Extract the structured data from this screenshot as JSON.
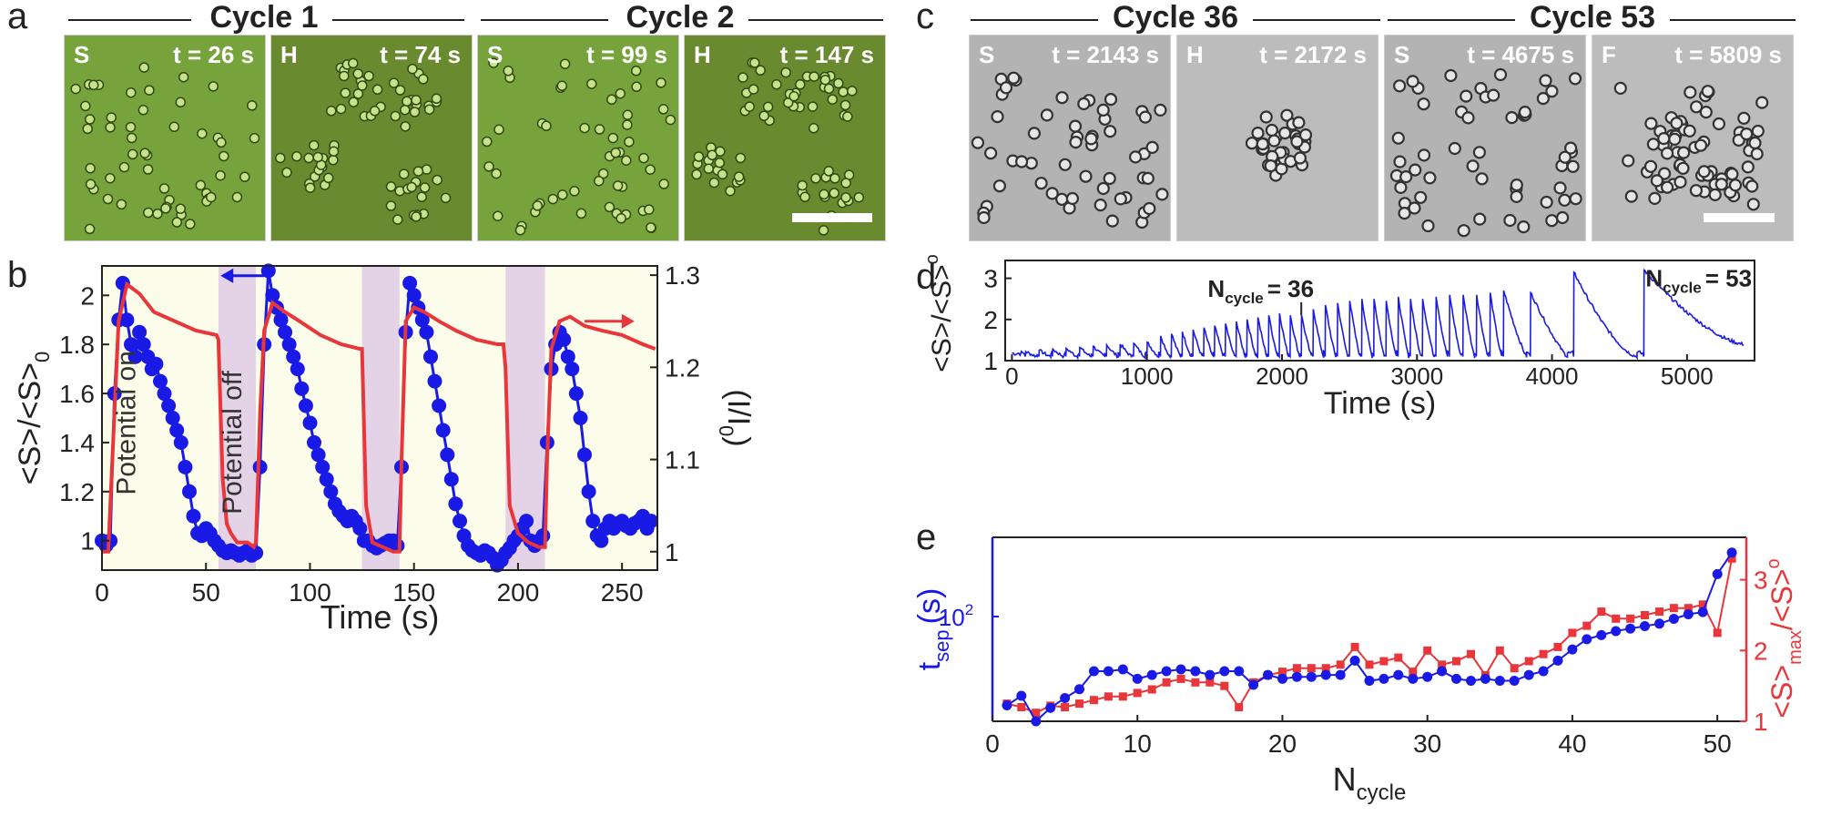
{
  "panel_letters": {
    "a": "a",
    "b": "b",
    "c": "c",
    "d": "d",
    "e": "e"
  },
  "cycle_headers": {
    "c1": "Cycle 1",
    "c2": "Cycle 2",
    "c36": "Cycle 36",
    "c53": "Cycle 53"
  },
  "micrographs": [
    {
      "state": "S",
      "time": "t = 26 s"
    },
    {
      "state": "H",
      "time": "t = 74 s"
    },
    {
      "state": "S",
      "time": "t = 99 s"
    },
    {
      "state": "H",
      "time": "t = 147 s"
    },
    {
      "state": "S",
      "time": "t = 2143 s"
    },
    {
      "state": "H",
      "time": "t = 2172 s"
    },
    {
      "state": "S",
      "time": "t = 4675 s"
    },
    {
      "state": "F",
      "time": "t = 5809 s"
    }
  ],
  "colors": {
    "blue": "#1a1ae6",
    "red": "#e8363a",
    "shade": "#e4d2e6",
    "bg": "#fbfcea",
    "green_img": "#6f9a37",
    "gray_img": "#b5b5b5"
  },
  "chart_data": [
    {
      "id": "b",
      "type": "line",
      "xlabel": "Time (s)",
      "ylabel_left": "<S>/<S>",
      "ylabel_left_sub": "0",
      "ylabel_right": "(I/I",
      "ylabel_right_sub": "0",
      "ylabel_right_end": ")",
      "xlim": [
        0,
        267
      ],
      "ylim_left": [
        0.88,
        2.12
      ],
      "ylim_right": [
        0.98,
        1.31
      ],
      "xticks": [
        0,
        50,
        100,
        150,
        200,
        250
      ],
      "yticks_left": [
        1,
        1.2,
        1.4,
        1.6,
        1.8,
        2
      ],
      "yticks_right": [
        1,
        1.1,
        1.2,
        1.3
      ],
      "annotations": [
        "Potential on",
        "Potential off"
      ],
      "shaded_intervals": [
        [
          56,
          74
        ],
        [
          125,
          143
        ],
        [
          194,
          213
        ]
      ],
      "series": [
        {
          "name": "<S>/<S>0",
          "axis": "left",
          "color": "#1a1ae6",
          "marker": "circle",
          "x": [
            0,
            2,
            4,
            6,
            8,
            10,
            12,
            14,
            16,
            18,
            20,
            22,
            24,
            26,
            28,
            30,
            32,
            34,
            36,
            38,
            40,
            42,
            44,
            46,
            48,
            50,
            52,
            54,
            56,
            58,
            60,
            62,
            64,
            66,
            68,
            70,
            72,
            74,
            76,
            78,
            80,
            82,
            84,
            86,
            88,
            90,
            92,
            94,
            96,
            98,
            100,
            102,
            104,
            106,
            108,
            110,
            112,
            114,
            116,
            118,
            120,
            122,
            124,
            126,
            128,
            130,
            132,
            134,
            136,
            138,
            140,
            142,
            144,
            146,
            148,
            150,
            152,
            154,
            156,
            158,
            160,
            162,
            164,
            166,
            168,
            170,
            172,
            174,
            176,
            178,
            180,
            182,
            184,
            186,
            188,
            190,
            192,
            194,
            196,
            198,
            200,
            202,
            204,
            206,
            208,
            210,
            212,
            214,
            216,
            218,
            220,
            222,
            224,
            226,
            228,
            230,
            232,
            234,
            236,
            238,
            240,
            242,
            244,
            246,
            248,
            250,
            252,
            254,
            256,
            258,
            260,
            262,
            264
          ],
          "y": [
            1.0,
            0.98,
            1.0,
            1.6,
            1.9,
            2.05,
            1.9,
            1.8,
            1.75,
            1.85,
            1.8,
            1.75,
            1.7,
            1.72,
            1.65,
            1.6,
            1.55,
            1.5,
            1.45,
            1.4,
            1.3,
            1.2,
            1.1,
            1.03,
            1.02,
            1.05,
            1.03,
            1.0,
            0.98,
            0.96,
            0.95,
            0.96,
            0.95,
            0.94,
            0.95,
            0.96,
            0.94,
            0.95,
            1.3,
            1.8,
            2.1,
            2.0,
            1.95,
            1.9,
            1.85,
            1.8,
            1.75,
            1.7,
            1.62,
            1.55,
            1.48,
            1.4,
            1.35,
            1.3,
            1.25,
            1.2,
            1.15,
            1.12,
            1.1,
            1.08,
            1.1,
            1.08,
            1.05,
            1.0,
            1.0,
            0.98,
            0.97,
            0.98,
            0.99,
            1.0,
            1.0,
            0.98,
            1.3,
            1.85,
            2.05,
            2.0,
            1.95,
            1.9,
            1.85,
            1.75,
            1.65,
            1.55,
            1.45,
            1.35,
            1.25,
            1.15,
            1.08,
            1.02,
            0.98,
            0.96,
            0.95,
            0.94,
            0.96,
            0.95,
            0.93,
            0.9,
            0.92,
            0.95,
            0.97,
            1.0,
            1.02,
            1.05,
            1.08,
            1.0,
            0.98,
            1.0,
            1.02,
            1.4,
            1.7,
            1.8,
            1.85,
            1.82,
            1.75,
            1.7,
            1.6,
            1.5,
            1.35,
            1.2,
            1.08,
            1.02,
            1.0,
            1.05,
            1.08,
            1.05,
            1.07,
            1.08,
            1.06,
            1.05,
            1.07,
            1.08,
            1.1,
            1.05,
            1.08
          ]
        },
        {
          "name": "I/I0",
          "axis": "right",
          "color": "#e8363a",
          "marker": "none",
          "x": [
            0,
            3,
            5,
            8,
            12,
            18,
            25,
            35,
            45,
            55,
            56,
            58,
            60,
            62,
            65,
            70,
            73,
            74,
            76,
            78,
            82,
            88,
            95,
            105,
            115,
            124,
            125,
            127,
            130,
            135,
            140,
            143,
            144,
            146,
            150,
            155,
            162,
            170,
            180,
            190,
            193,
            194,
            196,
            200,
            205,
            210,
            213,
            214,
            216,
            220,
            225,
            232,
            240,
            250,
            260,
            266
          ],
          "y": [
            1.0,
            1.0,
            1.1,
            1.25,
            1.29,
            1.28,
            1.26,
            1.25,
            1.24,
            1.235,
            1.23,
            1.08,
            1.03,
            1.02,
            1.01,
            1.01,
            1.005,
            1.01,
            1.15,
            1.24,
            1.27,
            1.26,
            1.25,
            1.235,
            1.225,
            1.22,
            1.22,
            1.05,
            1.01,
            1.005,
            1.0,
            1.0,
            1.1,
            1.25,
            1.265,
            1.26,
            1.25,
            1.24,
            1.23,
            1.225,
            1.225,
            1.2,
            1.05,
            1.02,
            1.01,
            1.005,
            1.005,
            1.1,
            1.22,
            1.25,
            1.255,
            1.245,
            1.24,
            1.235,
            1.225,
            1.22
          ]
        }
      ]
    },
    {
      "id": "d",
      "type": "line",
      "xlabel": "Time (s)",
      "ylabel": "<S>/<S>",
      "ylabel_sub": "o",
      "xlim": [
        -50,
        5500
      ],
      "ylim": [
        1,
        3.3
      ],
      "xticks": [
        0,
        1000,
        2000,
        3000,
        4000,
        5000
      ],
      "yticks": [
        1,
        2,
        3
      ],
      "annotations": [
        {
          "text": "N",
          "sub": "cycle",
          "rest": "= 36"
        },
        {
          "text": "N",
          "sub": "cycle",
          "rest": "= 53"
        }
      ],
      "peaks": {
        "times": [
          100,
          200,
          300,
          400,
          500,
          600,
          700,
          800,
          900,
          1000,
          1100,
          1180,
          1260,
          1340,
          1420,
          1500,
          1580,
          1660,
          1740,
          1820,
          1900,
          1980,
          2060,
          2143,
          2230,
          2320,
          2410,
          2500,
          2590,
          2680,
          2770,
          2860,
          2950,
          3040,
          3140,
          3240,
          3340,
          3440,
          3540,
          3640,
          3840,
          4160,
          4680
        ],
        "heights": [
          1.22,
          1.25,
          1.28,
          1.3,
          1.32,
          1.35,
          1.38,
          1.4,
          1.42,
          1.45,
          1.6,
          1.65,
          1.7,
          1.75,
          1.8,
          1.85,
          1.9,
          1.95,
          2.0,
          2.05,
          2.1,
          2.15,
          2.1,
          2.1,
          2.25,
          2.35,
          2.4,
          2.45,
          2.5,
          2.5,
          2.45,
          2.55,
          2.5,
          2.5,
          2.55,
          2.6,
          2.6,
          2.6,
          2.65,
          2.7,
          2.65,
          3.15,
          3.2
        ]
      },
      "series": [
        {
          "name": "<S>/<S>o",
          "color": "#1a1ae6"
        }
      ]
    },
    {
      "id": "e",
      "type": "line",
      "xlabel": "N",
      "xlabel_sub": "cycle",
      "ylabel_left": "t",
      "ylabel_left_sub": "sep",
      "ylabel_left_end": "(s)",
      "ylabel_right": "<S>",
      "ylabel_right_sub": "max",
      "ylabel_right_end": "/<S>",
      "ylabel_right_sub2": "o",
      "xlim": [
        0,
        52
      ],
      "ylim_left_log": [
        40,
        200
      ],
      "ylim_right": [
        1,
        3.6
      ],
      "xticks": [
        0,
        10,
        20,
        30,
        40,
        50
      ],
      "yticks_left": [
        {
          "label": "10",
          "exp": "2",
          "value": 100
        }
      ],
      "yticks_right": [
        1,
        2,
        3
      ],
      "series": [
        {
          "name": "t_sep",
          "axis": "left",
          "color": "#1a1ae6",
          "marker": "circle",
          "x": [
            1,
            2,
            3,
            4,
            5,
            6,
            7,
            8,
            9,
            10,
            11,
            12,
            13,
            14,
            15,
            16,
            17,
            18,
            19,
            20,
            21,
            22,
            23,
            24,
            25,
            26,
            27,
            28,
            29,
            30,
            31,
            32,
            33,
            34,
            35,
            36,
            37,
            38,
            39,
            40,
            41,
            42,
            43,
            44,
            45,
            46,
            47,
            48,
            49,
            50,
            51
          ],
          "y": [
            46,
            50,
            40,
            45,
            49,
            53,
            62,
            62,
            63,
            58,
            60,
            62,
            63,
            62,
            60,
            62,
            62,
            55,
            60,
            58,
            59,
            59,
            60,
            60,
            68,
            57,
            58,
            60,
            58,
            59,
            62,
            58,
            57,
            58,
            57,
            57,
            60,
            62,
            68,
            75,
            82,
            85,
            88,
            90,
            92,
            94,
            98,
            102,
            104,
            145,
            175
          ]
        },
        {
          "name": "<S>max/<S>o",
          "axis": "right",
          "color": "#e8363a",
          "marker": "square",
          "x": [
            1,
            2,
            3,
            4,
            5,
            6,
            7,
            8,
            9,
            10,
            11,
            12,
            13,
            14,
            15,
            16,
            17,
            18,
            19,
            20,
            21,
            22,
            23,
            24,
            25,
            26,
            27,
            28,
            29,
            30,
            31,
            32,
            33,
            34,
            35,
            36,
            37,
            38,
            39,
            40,
            41,
            42,
            43,
            44,
            45,
            46,
            47,
            48,
            49,
            50,
            51
          ],
          "y": [
            1.25,
            1.2,
            1.12,
            1.22,
            1.2,
            1.25,
            1.3,
            1.35,
            1.35,
            1.4,
            1.45,
            1.55,
            1.6,
            1.55,
            1.55,
            1.5,
            1.2,
            1.55,
            1.65,
            1.7,
            1.75,
            1.75,
            1.75,
            1.8,
            2.05,
            1.8,
            1.85,
            1.9,
            1.7,
            2.0,
            1.8,
            1.85,
            1.95,
            1.65,
            2.0,
            1.75,
            1.85,
            1.95,
            2.05,
            2.25,
            2.35,
            2.55,
            2.45,
            2.45,
            2.5,
            2.55,
            2.6,
            2.6,
            2.65,
            2.25,
            3.3
          ]
        }
      ]
    }
  ]
}
